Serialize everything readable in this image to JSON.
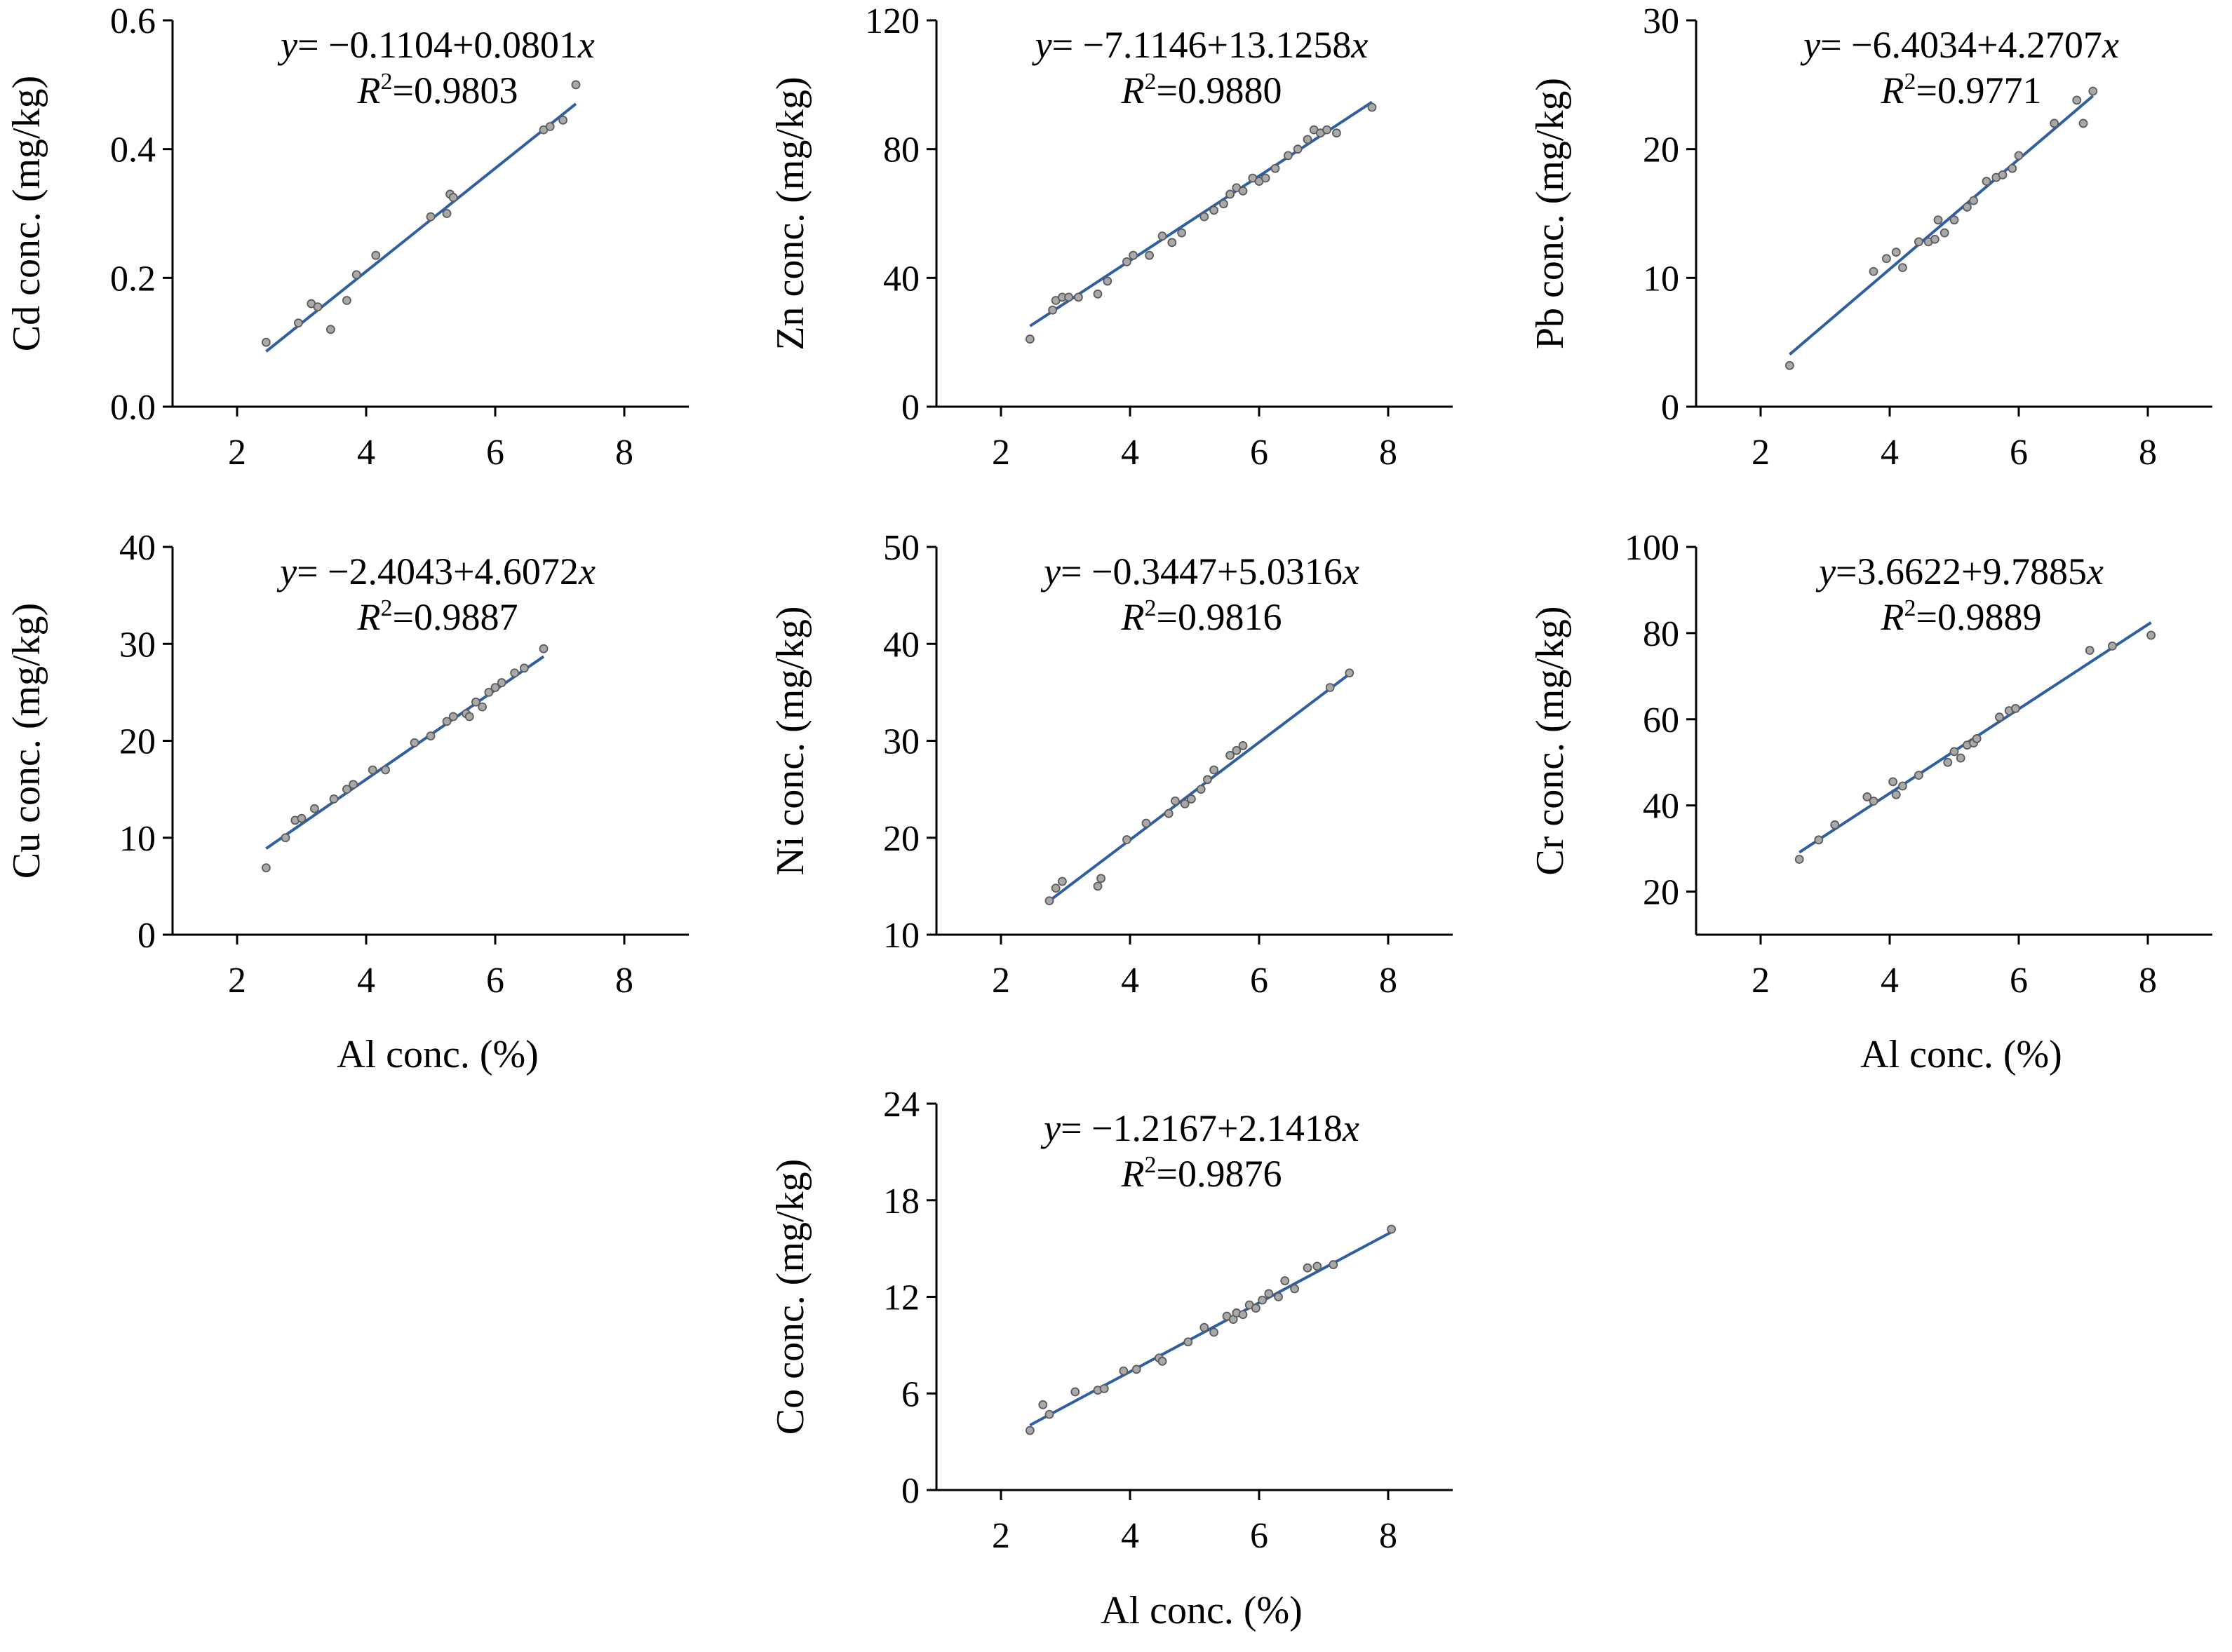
{
  "colors": {
    "fit_line": "#2f5fa0",
    "point_fill": "#a9a9a9",
    "point_stroke": "#5c5c5c",
    "axis": "#000000"
  },
  "chart_data": [
    {
      "type": "scatter",
      "id": "cd",
      "ylabel": "Cd conc. (mg/kg)",
      "xlabel": "",
      "xlim": [
        1,
        9
      ],
      "ylim": [
        0,
        0.6
      ],
      "xticks": [
        "2",
        "4",
        "6",
        "8"
      ],
      "xtick_values": [
        2,
        4,
        6,
        8
      ],
      "yticks": [
        "0.0",
        "0.2",
        "0.4",
        "0.6"
      ],
      "ytick_values": [
        0,
        0.2,
        0.4,
        0.6
      ],
      "equation": {
        "y": "y",
        "rest": "= −0.1104+0.0801",
        "x": "x"
      },
      "r2": {
        "r": "R",
        "sup": "2",
        "rest": "=0.9803"
      },
      "fit": {
        "intercept": -0.1104,
        "slope": 0.0801,
        "x_range": [
          2.45,
          7.25
        ]
      },
      "points": [
        [
          2.45,
          0.1
        ],
        [
          2.95,
          0.13
        ],
        [
          3.15,
          0.16
        ],
        [
          3.25,
          0.155
        ],
        [
          3.45,
          0.12
        ],
        [
          3.7,
          0.165
        ],
        [
          3.85,
          0.205
        ],
        [
          4.15,
          0.235
        ],
        [
          5.0,
          0.295
        ],
        [
          5.25,
          0.3
        ],
        [
          5.3,
          0.33
        ],
        [
          5.35,
          0.325
        ],
        [
          6.75,
          0.43
        ],
        [
          6.85,
          0.435
        ],
        [
          7.05,
          0.445
        ],
        [
          7.25,
          0.5
        ]
      ]
    },
    {
      "type": "scatter",
      "id": "zn",
      "ylabel": "Zn conc. (mg/kg)",
      "xlabel": "",
      "xlim": [
        1,
        9
      ],
      "ylim": [
        0,
        120
      ],
      "xticks": [
        "2",
        "4",
        "6",
        "8"
      ],
      "xtick_values": [
        2,
        4,
        6,
        8
      ],
      "yticks": [
        "0",
        "40",
        "80",
        "120"
      ],
      "ytick_values": [
        0,
        40,
        80,
        120
      ],
      "equation": {
        "y": "y",
        "rest": "= −7.1146+13.1258",
        "x": "x"
      },
      "r2": {
        "r": "R",
        "sup": "2",
        "rest": "=0.9880"
      },
      "fit": {
        "intercept": -7.1146,
        "slope": 13.1258,
        "x_range": [
          2.45,
          7.75
        ]
      },
      "points": [
        [
          2.45,
          21
        ],
        [
          2.8,
          30
        ],
        [
          2.85,
          33
        ],
        [
          2.95,
          34
        ],
        [
          3.05,
          34
        ],
        [
          3.2,
          34
        ],
        [
          3.5,
          35
        ],
        [
          3.65,
          39
        ],
        [
          3.95,
          45
        ],
        [
          4.05,
          47
        ],
        [
          4.3,
          47
        ],
        [
          4.5,
          53
        ],
        [
          4.65,
          51
        ],
        [
          4.8,
          54
        ],
        [
          5.15,
          59
        ],
        [
          5.3,
          61
        ],
        [
          5.45,
          63
        ],
        [
          5.55,
          66
        ],
        [
          5.65,
          68
        ],
        [
          5.75,
          67
        ],
        [
          5.9,
          71
        ],
        [
          6.0,
          70
        ],
        [
          6.1,
          71
        ],
        [
          6.25,
          74
        ],
        [
          6.45,
          78
        ],
        [
          6.6,
          80
        ],
        [
          6.75,
          83
        ],
        [
          6.85,
          86
        ],
        [
          6.95,
          85
        ],
        [
          7.05,
          86
        ],
        [
          7.2,
          85
        ],
        [
          7.75,
          93
        ]
      ]
    },
    {
      "type": "scatter",
      "id": "pb",
      "ylabel": "Pb conc. (mg/kg)",
      "xlabel": "",
      "xlim": [
        1,
        9
      ],
      "ylim": [
        0,
        30
      ],
      "xticks": [
        "2",
        "4",
        "6",
        "8"
      ],
      "xtick_values": [
        2,
        4,
        6,
        8
      ],
      "yticks": [
        "0",
        "10",
        "20",
        "30"
      ],
      "ytick_values": [
        0,
        10,
        20,
        30
      ],
      "equation": {
        "y": "y",
        "rest": "= −6.4034+4.2707",
        "x": "x"
      },
      "r2": {
        "r": "R",
        "sup": "2",
        "rest": "=0.9771"
      },
      "fit": {
        "intercept": -6.4034,
        "slope": 4.2707,
        "x_range": [
          2.45,
          7.15
        ]
      },
      "points": [
        [
          2.45,
          3.2
        ],
        [
          3.75,
          10.5
        ],
        [
          3.95,
          11.5
        ],
        [
          4.1,
          12
        ],
        [
          4.2,
          10.8
        ],
        [
          4.45,
          12.8
        ],
        [
          4.6,
          12.8
        ],
        [
          4.7,
          13
        ],
        [
          4.75,
          14.5
        ],
        [
          4.85,
          13.5
        ],
        [
          5.0,
          14.5
        ],
        [
          5.2,
          15.5
        ],
        [
          5.3,
          16
        ],
        [
          5.5,
          17.5
        ],
        [
          5.65,
          17.8
        ],
        [
          5.75,
          18
        ],
        [
          5.9,
          18.5
        ],
        [
          6.0,
          19.5
        ],
        [
          6.55,
          22
        ],
        [
          6.9,
          23.8
        ],
        [
          7.0,
          22
        ],
        [
          7.15,
          24.5
        ]
      ]
    },
    {
      "type": "scatter",
      "id": "cu",
      "ylabel": "Cu conc. (mg/kg)",
      "xlabel": "Al conc. (%)",
      "xlim": [
        1,
        9
      ],
      "ylim": [
        0,
        40
      ],
      "xticks": [
        "2",
        "4",
        "6",
        "8"
      ],
      "xtick_values": [
        2,
        4,
        6,
        8
      ],
      "yticks": [
        "0",
        "10",
        "20",
        "30",
        "40"
      ],
      "ytick_values": [
        0,
        10,
        20,
        30,
        40
      ],
      "equation": {
        "y": "y",
        "rest": "= −2.4043+4.6072",
        "x": "x"
      },
      "r2": {
        "r": "R",
        "sup": "2",
        "rest": "=0.9887"
      },
      "fit": {
        "intercept": -2.4043,
        "slope": 4.6072,
        "x_range": [
          2.45,
          6.75
        ]
      },
      "points": [
        [
          2.45,
          6.9
        ],
        [
          2.75,
          10
        ],
        [
          2.9,
          11.8
        ],
        [
          3.0,
          12
        ],
        [
          3.2,
          13
        ],
        [
          3.5,
          14
        ],
        [
          3.7,
          15
        ],
        [
          3.8,
          15.5
        ],
        [
          4.1,
          17
        ],
        [
          4.3,
          17
        ],
        [
          4.75,
          19.8
        ],
        [
          5.0,
          20.5
        ],
        [
          5.25,
          22
        ],
        [
          5.35,
          22.5
        ],
        [
          5.55,
          22.8
        ],
        [
          5.6,
          22.5
        ],
        [
          5.7,
          24
        ],
        [
          5.8,
          23.5
        ],
        [
          5.9,
          25
        ],
        [
          6.0,
          25.5
        ],
        [
          6.1,
          26
        ],
        [
          6.3,
          27
        ],
        [
          6.45,
          27.5
        ],
        [
          6.75,
          29.5
        ]
      ]
    },
    {
      "type": "scatter",
      "id": "ni",
      "ylabel": "Ni conc. (mg/kg)",
      "xlabel": "",
      "xlim": [
        1,
        9
      ],
      "ylim": [
        10,
        50
      ],
      "xticks": [
        "2",
        "4",
        "6",
        "8"
      ],
      "xtick_values": [
        2,
        4,
        6,
        8
      ],
      "yticks": [
        "10",
        "20",
        "30",
        "40",
        "50"
      ],
      "ytick_values": [
        10,
        20,
        30,
        40,
        50
      ],
      "equation": {
        "y": "y",
        "rest": "= −0.3447+5.0316",
        "x": "x"
      },
      "r2": {
        "r": "R",
        "sup": "2",
        "rest": "=0.9816"
      },
      "fit": {
        "intercept": -0.3447,
        "slope": 5.0316,
        "x_range": [
          2.75,
          7.4
        ]
      },
      "points": [
        [
          2.75,
          13.5
        ],
        [
          2.85,
          14.8
        ],
        [
          2.95,
          15.5
        ],
        [
          3.5,
          15
        ],
        [
          3.55,
          15.8
        ],
        [
          3.95,
          19.8
        ],
        [
          4.25,
          21.5
        ],
        [
          4.6,
          22.5
        ],
        [
          4.7,
          23.8
        ],
        [
          4.85,
          23.5
        ],
        [
          4.95,
          24
        ],
        [
          5.1,
          25
        ],
        [
          5.2,
          26
        ],
        [
          5.3,
          27
        ],
        [
          5.55,
          28.5
        ],
        [
          5.65,
          29
        ],
        [
          5.75,
          29.5
        ],
        [
          7.1,
          35.5
        ],
        [
          7.4,
          37
        ]
      ]
    },
    {
      "type": "scatter",
      "id": "cr",
      "ylabel": "Cr conc. (mg/kg)",
      "xlabel": "Al conc. (%)",
      "xlim": [
        1,
        9
      ],
      "ylim": [
        10,
        100
      ],
      "xticks": [
        "2",
        "4",
        "6",
        "8"
      ],
      "xtick_values": [
        2,
        4,
        6,
        8
      ],
      "yticks": [
        "20",
        "40",
        "60",
        "80",
        "100"
      ],
      "ytick_values": [
        20,
        40,
        60,
        80,
        100
      ],
      "equation": {
        "y": "y",
        "rest": "=3.6622+9.7885",
        "x": "x"
      },
      "r2": {
        "r": "R",
        "sup": "2",
        "rest": "=0.9889"
      },
      "fit": {
        "intercept": 3.6622,
        "slope": 9.7885,
        "x_range": [
          2.6,
          8.05
        ]
      },
      "points": [
        [
          2.6,
          27.5
        ],
        [
          2.9,
          32
        ],
        [
          3.15,
          35.5
        ],
        [
          3.65,
          42
        ],
        [
          3.75,
          41
        ],
        [
          4.05,
          45.5
        ],
        [
          4.1,
          42.5
        ],
        [
          4.2,
          44.5
        ],
        [
          4.45,
          47
        ],
        [
          4.9,
          50
        ],
        [
          5.0,
          52.5
        ],
        [
          5.1,
          51
        ],
        [
          5.2,
          54
        ],
        [
          5.3,
          54.5
        ],
        [
          5.35,
          55.5
        ],
        [
          5.7,
          60.5
        ],
        [
          5.85,
          62
        ],
        [
          5.95,
          62.5
        ],
        [
          7.1,
          76
        ],
        [
          7.45,
          77
        ],
        [
          8.05,
          79.5
        ]
      ]
    },
    {
      "type": "scatter",
      "id": "co",
      "ylabel": "Co conc. (mg/kg)",
      "xlabel": "Al conc. (%)",
      "xlim": [
        1,
        9
      ],
      "ylim": [
        0,
        24
      ],
      "xticks": [
        "2",
        "4",
        "6",
        "8"
      ],
      "xtick_values": [
        2,
        4,
        6,
        8
      ],
      "yticks": [
        "0",
        "6",
        "12",
        "18",
        "24"
      ],
      "ytick_values": [
        0,
        6,
        12,
        18,
        24
      ],
      "equation": {
        "y": "y",
        "rest": "= −1.2167+2.1418",
        "x": "x"
      },
      "r2": {
        "r": "R",
        "sup": "2",
        "rest": "=0.9876"
      },
      "fit": {
        "intercept": -1.2167,
        "slope": 2.1418,
        "x_range": [
          2.45,
          8.05
        ]
      },
      "points": [
        [
          2.45,
          3.7
        ],
        [
          2.65,
          5.3
        ],
        [
          2.75,
          4.7
        ],
        [
          3.15,
          6.1
        ],
        [
          3.5,
          6.2
        ],
        [
          3.6,
          6.3
        ],
        [
          3.9,
          7.4
        ],
        [
          4.1,
          7.5
        ],
        [
          4.45,
          8.2
        ],
        [
          4.5,
          8
        ],
        [
          4.9,
          9.2
        ],
        [
          5.15,
          10.1
        ],
        [
          5.3,
          9.8
        ],
        [
          5.5,
          10.8
        ],
        [
          5.6,
          10.6
        ],
        [
          5.65,
          11
        ],
        [
          5.75,
          10.9
        ],
        [
          5.85,
          11.5
        ],
        [
          5.95,
          11.3
        ],
        [
          6.05,
          11.8
        ],
        [
          6.15,
          12.2
        ],
        [
          6.3,
          12
        ],
        [
          6.4,
          13
        ],
        [
          6.55,
          12.5
        ],
        [
          6.75,
          13.8
        ],
        [
          6.9,
          13.9
        ],
        [
          7.15,
          14
        ],
        [
          8.05,
          16.2
        ]
      ]
    }
  ]
}
